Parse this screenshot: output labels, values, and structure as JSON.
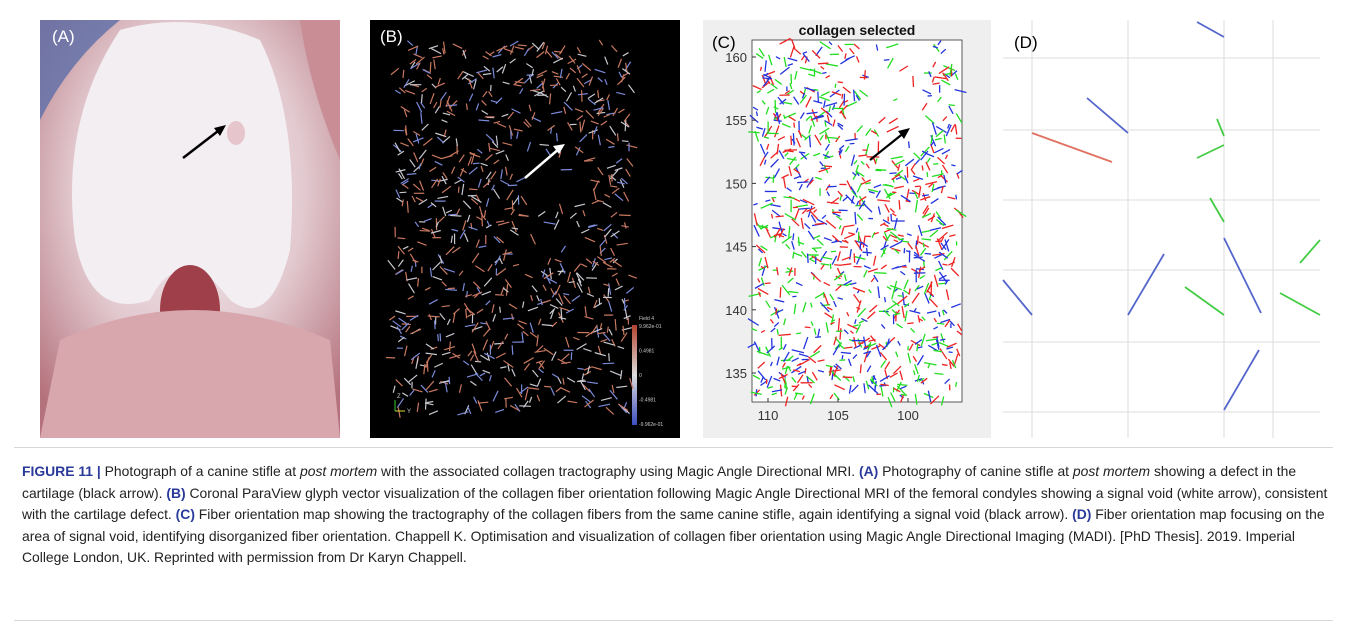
{
  "panels": [
    {
      "label": "(A)"
    },
    {
      "label": "(B)",
      "colorbar": {
        "title": "Field 4",
        "labels": [
          "9.962e-01",
          "0.4981",
          "0",
          "-0.4981",
          "-9.962e-01"
        ]
      },
      "axes": [
        "Z",
        "Y"
      ]
    },
    {
      "label": "(C)",
      "title": "collagen selected",
      "yticks": [
        160,
        155,
        150,
        145,
        140,
        135
      ],
      "xticks": [
        110,
        105,
        100
      ]
    },
    {
      "label": "(D)"
    }
  ],
  "caption": {
    "segments": [
      "FIGURE 11 |",
      " Photograph of a canine stifle at ",
      "post mortem",
      " with the associated collagen tractography using Magic Angle Directional MRI. ",
      "(A)",
      " Photography of canine stifle at ",
      "post mortem",
      " showing a defect in the cartilage (black arrow). ",
      "(B)",
      " Coronal ParaView glyph vector visualization of the collagen fiber orientation following Magic Angle Directional MRI of the femoral condyles showing a signal void (white arrow), consistent with the cartilage defect. ",
      "(C)",
      " Fiber orientation map showing the tractography of the collagen fibers from the same canine stifle, again identifying a signal void (black arrow). ",
      "(D)",
      " Fiber orientation map focusing on the area of signal void, identifying disorganized fiber orientation. Chappell K. Optimisation and visualization of collagen fiber orientation using Magic Angle Directional Imaging (MADI). [PhD Thesis]. 2019. Imperial College London, UK. Reprinted with permission from Dr Karyn Chappell."
    ]
  }
}
